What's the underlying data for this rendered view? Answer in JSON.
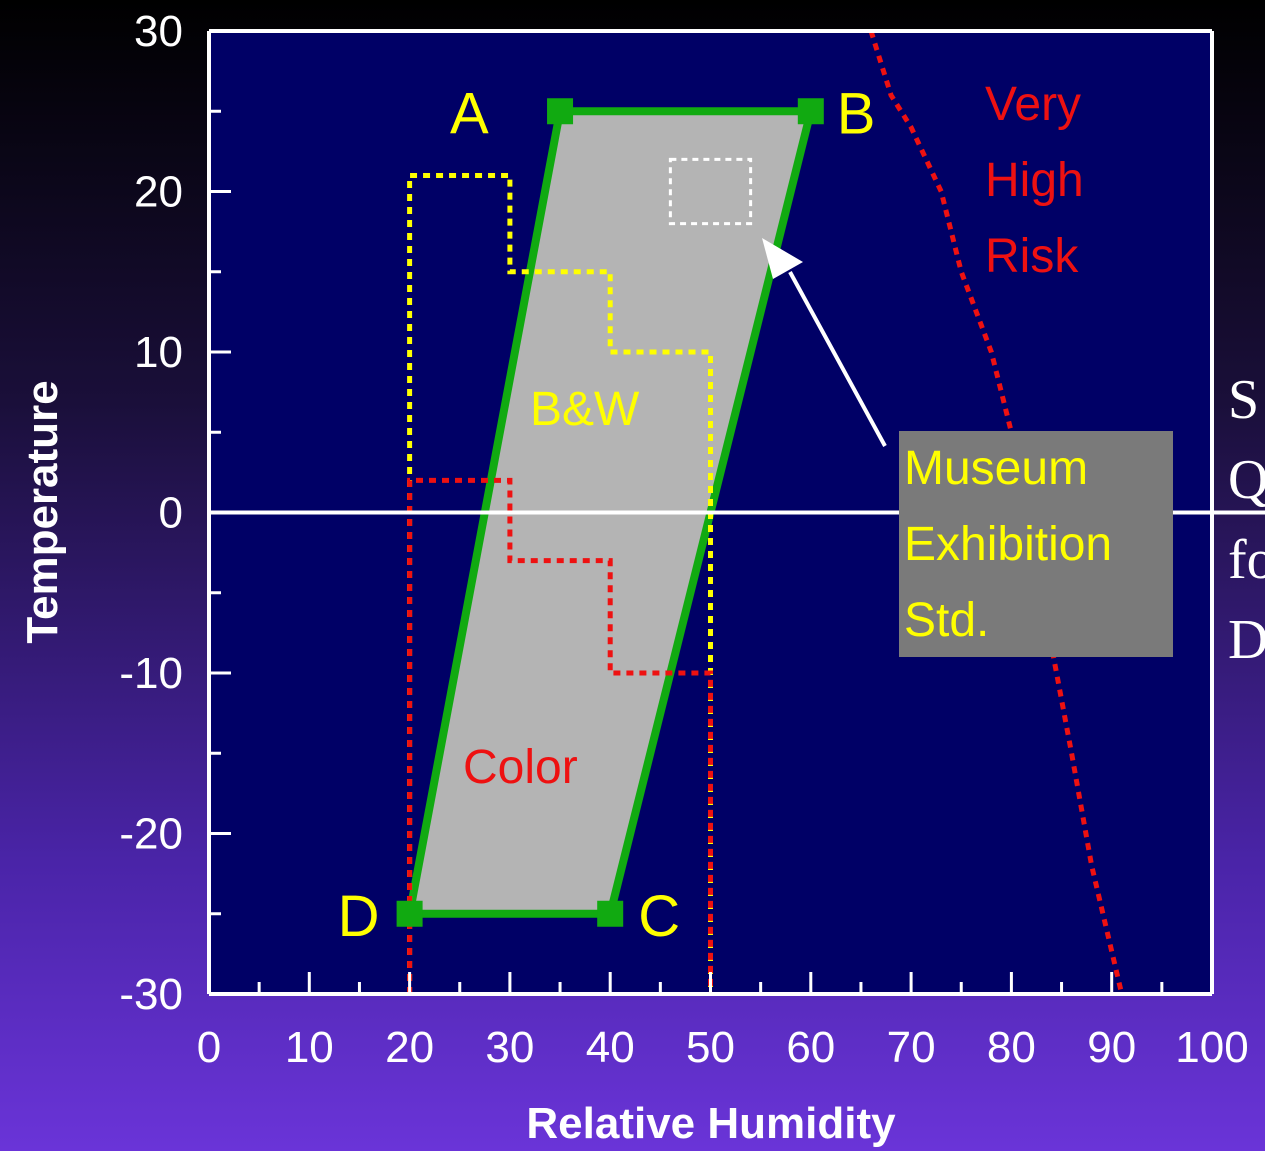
{
  "chart_data": {
    "type": "line",
    "xlabel": "Relative Humidity",
    "ylabel": "Temperature",
    "xlim": [
      0,
      100
    ],
    "ylim": [
      -30,
      30
    ],
    "x_ticks": [
      0,
      10,
      20,
      30,
      40,
      50,
      60,
      70,
      80,
      90,
      100
    ],
    "y_ticks": [
      30,
      20,
      10,
      0,
      -10,
      -20,
      -30
    ],
    "grid": false,
    "zero_line": true,
    "colors": {
      "plot_background": "#000066",
      "region_fill": "#b4b4b4",
      "region_outline": "#11aa11",
      "bw_line": "#ffff00",
      "color_line": "#ee1111",
      "risk_line": "#ee1111",
      "museum_box": "#ffffff",
      "museum_label_bg": "#7a7a7a"
    },
    "region": {
      "points": [
        {
          "label": "A",
          "x": 35,
          "y": 25
        },
        {
          "label": "B",
          "x": 60,
          "y": 25
        },
        {
          "label": "C",
          "x": 40,
          "y": -25
        },
        {
          "label": "D",
          "x": 20,
          "y": -25
        }
      ]
    },
    "series": [
      {
        "name": "B&W",
        "style": "dashed",
        "x": [
          20,
          20,
          30,
          30,
          40,
          40,
          50,
          50
        ],
        "y": [
          -30,
          21,
          21,
          15,
          15,
          10,
          10,
          -30
        ]
      },
      {
        "name": "Color",
        "style": "dashed",
        "x": [
          20,
          20,
          30,
          30,
          40,
          40,
          50,
          50
        ],
        "y": [
          -30,
          2,
          2,
          -3,
          -3,
          -10,
          -10,
          -30
        ]
      },
      {
        "name": "Very High Risk",
        "style": "dashed",
        "x": [
          66,
          68,
          70,
          73,
          75,
          78,
          80,
          83,
          86,
          88,
          91
        ],
        "y": [
          30,
          26,
          24,
          20,
          15,
          10,
          5,
          -5,
          -15,
          -22,
          -30
        ]
      }
    ],
    "museum_std": {
      "x": [
        46,
        54
      ],
      "y": [
        18,
        22
      ]
    },
    "annotations": {
      "very_high_risk": [
        "Very",
        "High",
        "Risk"
      ],
      "museum": [
        "Museum",
        "Exhibition",
        "Std."
      ],
      "bw": "B&W",
      "color": "Color"
    }
  },
  "side_text": [
    "S",
    "Q",
    "fo",
    "D"
  ]
}
